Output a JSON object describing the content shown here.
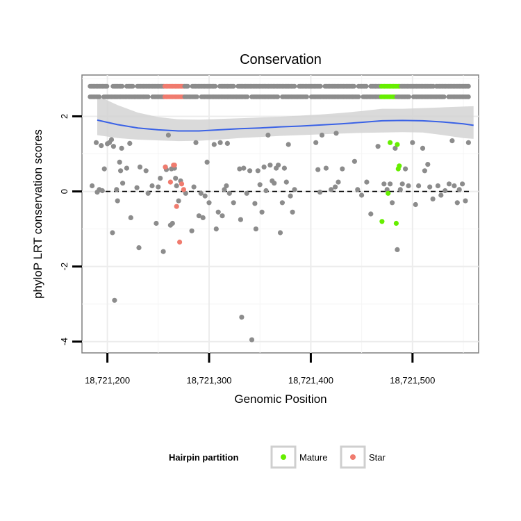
{
  "chart_data": {
    "type": "scatter",
    "title": "Conservation",
    "xlabel": "Genomic Position",
    "ylabel": "phyloP LRT conservation scores",
    "xlim": [
      18721175,
      18721565
    ],
    "ylim": [
      -4.3,
      3.1
    ],
    "x_ticks": [
      18721200,
      18721300,
      18721400,
      18721500
    ],
    "x_tick_labels": [
      "18,721,200",
      "18,721,300",
      "18,721,400",
      "18,721,500"
    ],
    "y_ticks": [
      2,
      0,
      -2,
      -4
    ],
    "y_tick_labels": [
      "2",
      "0",
      "-2",
      "-4"
    ],
    "reference_line": {
      "y": 0,
      "style": "dashed"
    },
    "colors": {
      "default": "#8c8c8c",
      "Mature": "#66ee00",
      "Star": "#f07b6e",
      "smooth": "#3a62e6",
      "band": "#d4d4d4"
    },
    "rug_rows": [
      {
        "y": 2.8,
        "start": 18721183,
        "end": 18721555,
        "gaps": [
          [
            18721200,
            18721204
          ],
          [
            18721216,
            18721218
          ],
          [
            18721226,
            18721229
          ],
          [
            18721280,
            18721282
          ],
          [
            18721307,
            18721310
          ],
          [
            18721325,
            18721327
          ],
          [
            18721385,
            18721387
          ],
          [
            18721410,
            18721413
          ],
          [
            18721444,
            18721446
          ],
          [
            18721455,
            18721458
          ],
          [
            18721521,
            18721523
          ]
        ],
        "segments": [
          {
            "start": 18721256,
            "end": 18721275,
            "partition": "Star"
          },
          {
            "start": 18721469,
            "end": 18721488,
            "partition": "Mature"
          }
        ]
      },
      {
        "y": 2.52,
        "start": 18721183,
        "end": 18721555,
        "gaps": [
          [
            18721193,
            18721196
          ],
          [
            18721241,
            18721244
          ],
          [
            18721289,
            18721292
          ],
          [
            18721338,
            18721341
          ],
          [
            18721368,
            18721371
          ],
          [
            18721397,
            18721399
          ],
          [
            18721448,
            18721450
          ],
          [
            18721498,
            18721500
          ],
          [
            18721532,
            18721534
          ]
        ],
        "segments": [
          {
            "start": 18721256,
            "end": 18721275,
            "partition": "Star"
          },
          {
            "start": 18721469,
            "end": 18721484,
            "partition": "Mature"
          }
        ]
      }
    ],
    "smooth_line": {
      "x": [
        18721190,
        18721210,
        18721230,
        18721250,
        18721270,
        18721290,
        18721310,
        18721330,
        18721350,
        18721370,
        18721390,
        18721410,
        18721430,
        18721450,
        18721470,
        18721490,
        18721510,
        18721530,
        18721550,
        18721560
      ],
      "y": [
        1.9,
        1.78,
        1.69,
        1.64,
        1.61,
        1.61,
        1.64,
        1.67,
        1.69,
        1.72,
        1.74,
        1.77,
        1.8,
        1.84,
        1.88,
        1.89,
        1.88,
        1.85,
        1.8,
        1.76
      ],
      "upper": [
        2.55,
        2.3,
        2.1,
        1.98,
        1.92,
        1.91,
        1.93,
        1.95,
        1.97,
        1.99,
        2.02,
        2.05,
        2.09,
        2.14,
        2.2,
        2.2,
        2.22,
        2.24,
        2.26,
        2.27
      ],
      "lower": [
        1.5,
        1.42,
        1.38,
        1.36,
        1.34,
        1.35,
        1.38,
        1.42,
        1.45,
        1.48,
        1.5,
        1.52,
        1.54,
        1.56,
        1.57,
        1.58,
        1.57,
        1.5,
        1.42,
        1.4
      ]
    },
    "points": [
      {
        "x": 18721185,
        "y": 0.15
      },
      {
        "x": 18721189,
        "y": 1.3
      },
      {
        "x": 18721190,
        "y": -0.02
      },
      {
        "x": 18721192,
        "y": 0.05
      },
      {
        "x": 18721194,
        "y": 1.22
      },
      {
        "x": 18721195,
        "y": 0.02
      },
      {
        "x": 18721197,
        "y": 0.6
      },
      {
        "x": 18721200,
        "y": 1.27
      },
      {
        "x": 18721202,
        "y": 1.3
      },
      {
        "x": 18721204,
        "y": 1.38
      },
      {
        "x": 18721205,
        "y": -1.1
      },
      {
        "x": 18721206,
        "y": 1.2
      },
      {
        "x": 18721207,
        "y": -2.9
      },
      {
        "x": 18721209,
        "y": 0.05
      },
      {
        "x": 18721210,
        "y": -0.25
      },
      {
        "x": 18721212,
        "y": 0.78
      },
      {
        "x": 18721213,
        "y": 0.55
      },
      {
        "x": 18721214,
        "y": 1.15
      },
      {
        "x": 18721215,
        "y": 0.22
      },
      {
        "x": 18721219,
        "y": 0.62
      },
      {
        "x": 18721222,
        "y": 1.28
      },
      {
        "x": 18721223,
        "y": -0.7
      },
      {
        "x": 18721229,
        "y": 0.1
      },
      {
        "x": 18721231,
        "y": -1.5
      },
      {
        "x": 18721232,
        "y": 0.65
      },
      {
        "x": 18721238,
        "y": 0.55
      },
      {
        "x": 18721240,
        "y": -0.05
      },
      {
        "x": 18721244,
        "y": 0.15
      },
      {
        "x": 18721248,
        "y": -0.85
      },
      {
        "x": 18721250,
        "y": 0.12
      },
      {
        "x": 18721252,
        "y": 0.35
      },
      {
        "x": 18721255,
        "y": -1.6
      },
      {
        "x": 18721257,
        "y": 0.65
      },
      {
        "x": 18721258,
        "y": 0.58
      },
      {
        "x": 18721260,
        "y": 1.5
      },
      {
        "x": 18721262,
        "y": -0.9
      },
      {
        "x": 18721263,
        "y": 0.6
      },
      {
        "x": 18721264,
        "y": -0.85
      },
      {
        "x": 18721266,
        "y": 0.62
      },
      {
        "x": 18721267,
        "y": 0.35
      },
      {
        "x": 18721268,
        "y": 0.15
      },
      {
        "x": 18721270,
        "y": -0.25
      },
      {
        "x": 18721272,
        "y": 0.28
      },
      {
        "x": 18721277,
        "y": -0.05
      },
      {
        "x": 18721283,
        "y": -1.05
      },
      {
        "x": 18721285,
        "y": 0.12
      },
      {
        "x": 18721287,
        "y": 1.3
      },
      {
        "x": 18721290,
        "y": -0.65
      },
      {
        "x": 18721292,
        "y": -0.05
      },
      {
        "x": 18721294,
        "y": -0.7
      },
      {
        "x": 18721296,
        "y": -0.12
      },
      {
        "x": 18721298,
        "y": 0.78
      },
      {
        "x": 18721300,
        "y": -0.3
      },
      {
        "x": 18721305,
        "y": 1.25
      },
      {
        "x": 18721307,
        "y": -1.0
      },
      {
        "x": 18721309,
        "y": -0.55
      },
      {
        "x": 18721311,
        "y": 1.3
      },
      {
        "x": 18721313,
        "y": -0.65
      },
      {
        "x": 18721315,
        "y": 0.05
      },
      {
        "x": 18721317,
        "y": 0.15
      },
      {
        "x": 18721318,
        "y": 1.28
      },
      {
        "x": 18721320,
        "y": -0.05
      },
      {
        "x": 18721324,
        "y": -0.3
      },
      {
        "x": 18721330,
        "y": 0.6
      },
      {
        "x": 18721331,
        "y": -0.75
      },
      {
        "x": 18721332,
        "y": -3.35
      },
      {
        "x": 18721334,
        "y": 0.62
      },
      {
        "x": 18721337,
        "y": -0.05
      },
      {
        "x": 18721340,
        "y": 0.55
      },
      {
        "x": 18721342,
        "y": -3.95
      },
      {
        "x": 18721345,
        "y": -0.32
      },
      {
        "x": 18721346,
        "y": -1.0
      },
      {
        "x": 18721348,
        "y": 0.55
      },
      {
        "x": 18721350,
        "y": 0.18
      },
      {
        "x": 18721352,
        "y": -0.55
      },
      {
        "x": 18721354,
        "y": 0.65
      },
      {
        "x": 18721356,
        "y": 0.02
      },
      {
        "x": 18721358,
        "y": 1.5
      },
      {
        "x": 18721360,
        "y": 0.7
      },
      {
        "x": 18721362,
        "y": 0.28
      },
      {
        "x": 18721364,
        "y": 0.22
      },
      {
        "x": 18721366,
        "y": 0.62
      },
      {
        "x": 18721368,
        "y": 0.7
      },
      {
        "x": 18721370,
        "y": -1.1
      },
      {
        "x": 18721372,
        "y": -0.3
      },
      {
        "x": 18721374,
        "y": 0.62
      },
      {
        "x": 18721376,
        "y": 0.25
      },
      {
        "x": 18721378,
        "y": 1.25
      },
      {
        "x": 18721380,
        "y": -0.12
      },
      {
        "x": 18721382,
        "y": -0.55
      },
      {
        "x": 18721384,
        "y": 0.05
      },
      {
        "x": 18721405,
        "y": 1.3
      },
      {
        "x": 18721407,
        "y": 0.58
      },
      {
        "x": 18721409,
        "y": -0.02
      },
      {
        "x": 18721411,
        "y": 1.5
      },
      {
        "x": 18721415,
        "y": 0.62
      },
      {
        "x": 18721420,
        "y": 0.05
      },
      {
        "x": 18721424,
        "y": 0.12
      },
      {
        "x": 18721425,
        "y": 1.55
      },
      {
        "x": 18721427,
        "y": 0.25
      },
      {
        "x": 18721431,
        "y": 0.6
      },
      {
        "x": 18721443,
        "y": 0.8
      },
      {
        "x": 18721446,
        "y": 0.05
      },
      {
        "x": 18721450,
        "y": -0.1
      },
      {
        "x": 18721455,
        "y": 0.25
      },
      {
        "x": 18721459,
        "y": -0.6
      },
      {
        "x": 18721466,
        "y": 1.2
      },
      {
        "x": 18721472,
        "y": 0.2
      },
      {
        "x": 18721475,
        "y": 0.05
      },
      {
        "x": 18721478,
        "y": 0.2
      },
      {
        "x": 18721480,
        "y": -0.3
      },
      {
        "x": 18721483,
        "y": 1.15
      },
      {
        "x": 18721485,
        "y": -1.55
      },
      {
        "x": 18721488,
        "y": 0.05
      },
      {
        "x": 18721490,
        "y": 0.2
      },
      {
        "x": 18721493,
        "y": 0.6
      },
      {
        "x": 18721496,
        "y": 0.15
      },
      {
        "x": 18721500,
        "y": 1.3
      },
      {
        "x": 18721503,
        "y": -0.35
      },
      {
        "x": 18721506,
        "y": 0.15
      },
      {
        "x": 18721510,
        "y": 1.15
      },
      {
        "x": 18721512,
        "y": 0.55
      },
      {
        "x": 18721515,
        "y": 0.72
      },
      {
        "x": 18721517,
        "y": 0.12
      },
      {
        "x": 18721520,
        "y": -0.2
      },
      {
        "x": 18721525,
        "y": 0.15
      },
      {
        "x": 18721528,
        "y": -0.1
      },
      {
        "x": 18721532,
        "y": 0.02
      },
      {
        "x": 18721536,
        "y": 0.2
      },
      {
        "x": 18721539,
        "y": 1.35
      },
      {
        "x": 18721541,
        "y": 0.15
      },
      {
        "x": 18721544,
        "y": -0.3
      },
      {
        "x": 18721546,
        "y": 0.05
      },
      {
        "x": 18721549,
        "y": 0.2
      },
      {
        "x": 18721552,
        "y": -0.25
      },
      {
        "x": 18721555,
        "y": 1.3
      },
      {
        "x": 18721257,
        "y": 0.65,
        "partition": "Star"
      },
      {
        "x": 18721262,
        "y": 0.25,
        "partition": "Star"
      },
      {
        "x": 18721265,
        "y": 0.7,
        "partition": "Star"
      },
      {
        "x": 18721266,
        "y": 0.7,
        "partition": "Star"
      },
      {
        "x": 18721268,
        "y": -0.4,
        "partition": "Star"
      },
      {
        "x": 18721271,
        "y": -1.35,
        "partition": "Star"
      },
      {
        "x": 18721273,
        "y": 0.2,
        "partition": "Star"
      },
      {
        "x": 18721275,
        "y": 0.05,
        "partition": "Star"
      },
      {
        "x": 18721470,
        "y": -0.8,
        "partition": "Mature"
      },
      {
        "x": 18721476,
        "y": -0.05,
        "partition": "Mature"
      },
      {
        "x": 18721478,
        "y": 1.3,
        "partition": "Mature"
      },
      {
        "x": 18721484,
        "y": -0.85,
        "partition": "Mature"
      },
      {
        "x": 18721485,
        "y": 1.25,
        "partition": "Mature"
      },
      {
        "x": 18721486,
        "y": 0.6,
        "partition": "Mature"
      },
      {
        "x": 18721487,
        "y": 0.68,
        "partition": "Mature"
      }
    ],
    "legend": {
      "title": "Hairpin partition",
      "position": "bottom",
      "entries": [
        {
          "label": "Mature",
          "color": "#66ee00"
        },
        {
          "label": "Star",
          "color": "#f07b6e"
        }
      ]
    }
  }
}
